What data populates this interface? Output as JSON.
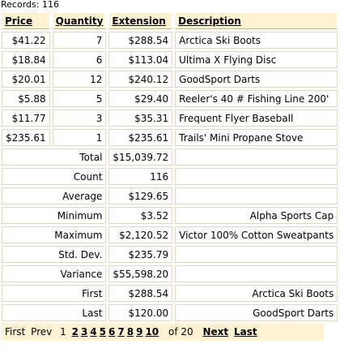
{
  "records_label": "Records:",
  "records_count": "116",
  "columns": [
    "Price",
    "Quantity",
    "Extension",
    "Description"
  ],
  "rows": [
    {
      "price": "$41.22",
      "qty": "7",
      "ext": "$288.54",
      "desc": "Arctica Ski Boots"
    },
    {
      "price": "$18.84",
      "qty": "6",
      "ext": "$113.04",
      "desc": "Ultima X Flying Disc"
    },
    {
      "price": "$20.01",
      "qty": "12",
      "ext": "$240.12",
      "desc": "GoodSport Darts"
    },
    {
      "price": "$5.88",
      "qty": "5",
      "ext": "$29.40",
      "desc": "Reeler's 40 # Fishing Line 200'"
    },
    {
      "price": "$11.77",
      "qty": "3",
      "ext": "$35.31",
      "desc": "Frequent Flyer Baseball"
    },
    {
      "price": "$235.61",
      "qty": "1",
      "ext": "$235.61",
      "desc": "Trails' Mini Propane Stove"
    }
  ],
  "summary": [
    {
      "label": "Total",
      "value": "$15,039.72",
      "desc": ""
    },
    {
      "label": "Count",
      "value": "116",
      "desc": ""
    },
    {
      "label": "Average",
      "value": "$129.65",
      "desc": ""
    },
    {
      "label": "Minimum",
      "value": "$3.52",
      "desc": "Alpha Sports Cap"
    },
    {
      "label": "Maximum",
      "value": "$2,120.52",
      "desc": "Victor 100% Cotton Sweatpants"
    },
    {
      "label": "Std. Dev.",
      "value": "$235.79",
      "desc": ""
    },
    {
      "label": "Variance",
      "value": "$55,598.20",
      "desc": ""
    },
    {
      "label": "First",
      "value": "$288.54",
      "desc": "Arctica Ski Boots"
    },
    {
      "label": "Last",
      "value": "$120.00",
      "desc": "GoodSport Darts"
    }
  ],
  "pager": {
    "first": "First",
    "prev": "Prev",
    "current_page": "1",
    "pages": [
      "2",
      "3",
      "4",
      "5",
      "6",
      "7",
      "8",
      "9",
      "10"
    ],
    "of_label": "of 20",
    "next": "Next",
    "last": "Last"
  }
}
